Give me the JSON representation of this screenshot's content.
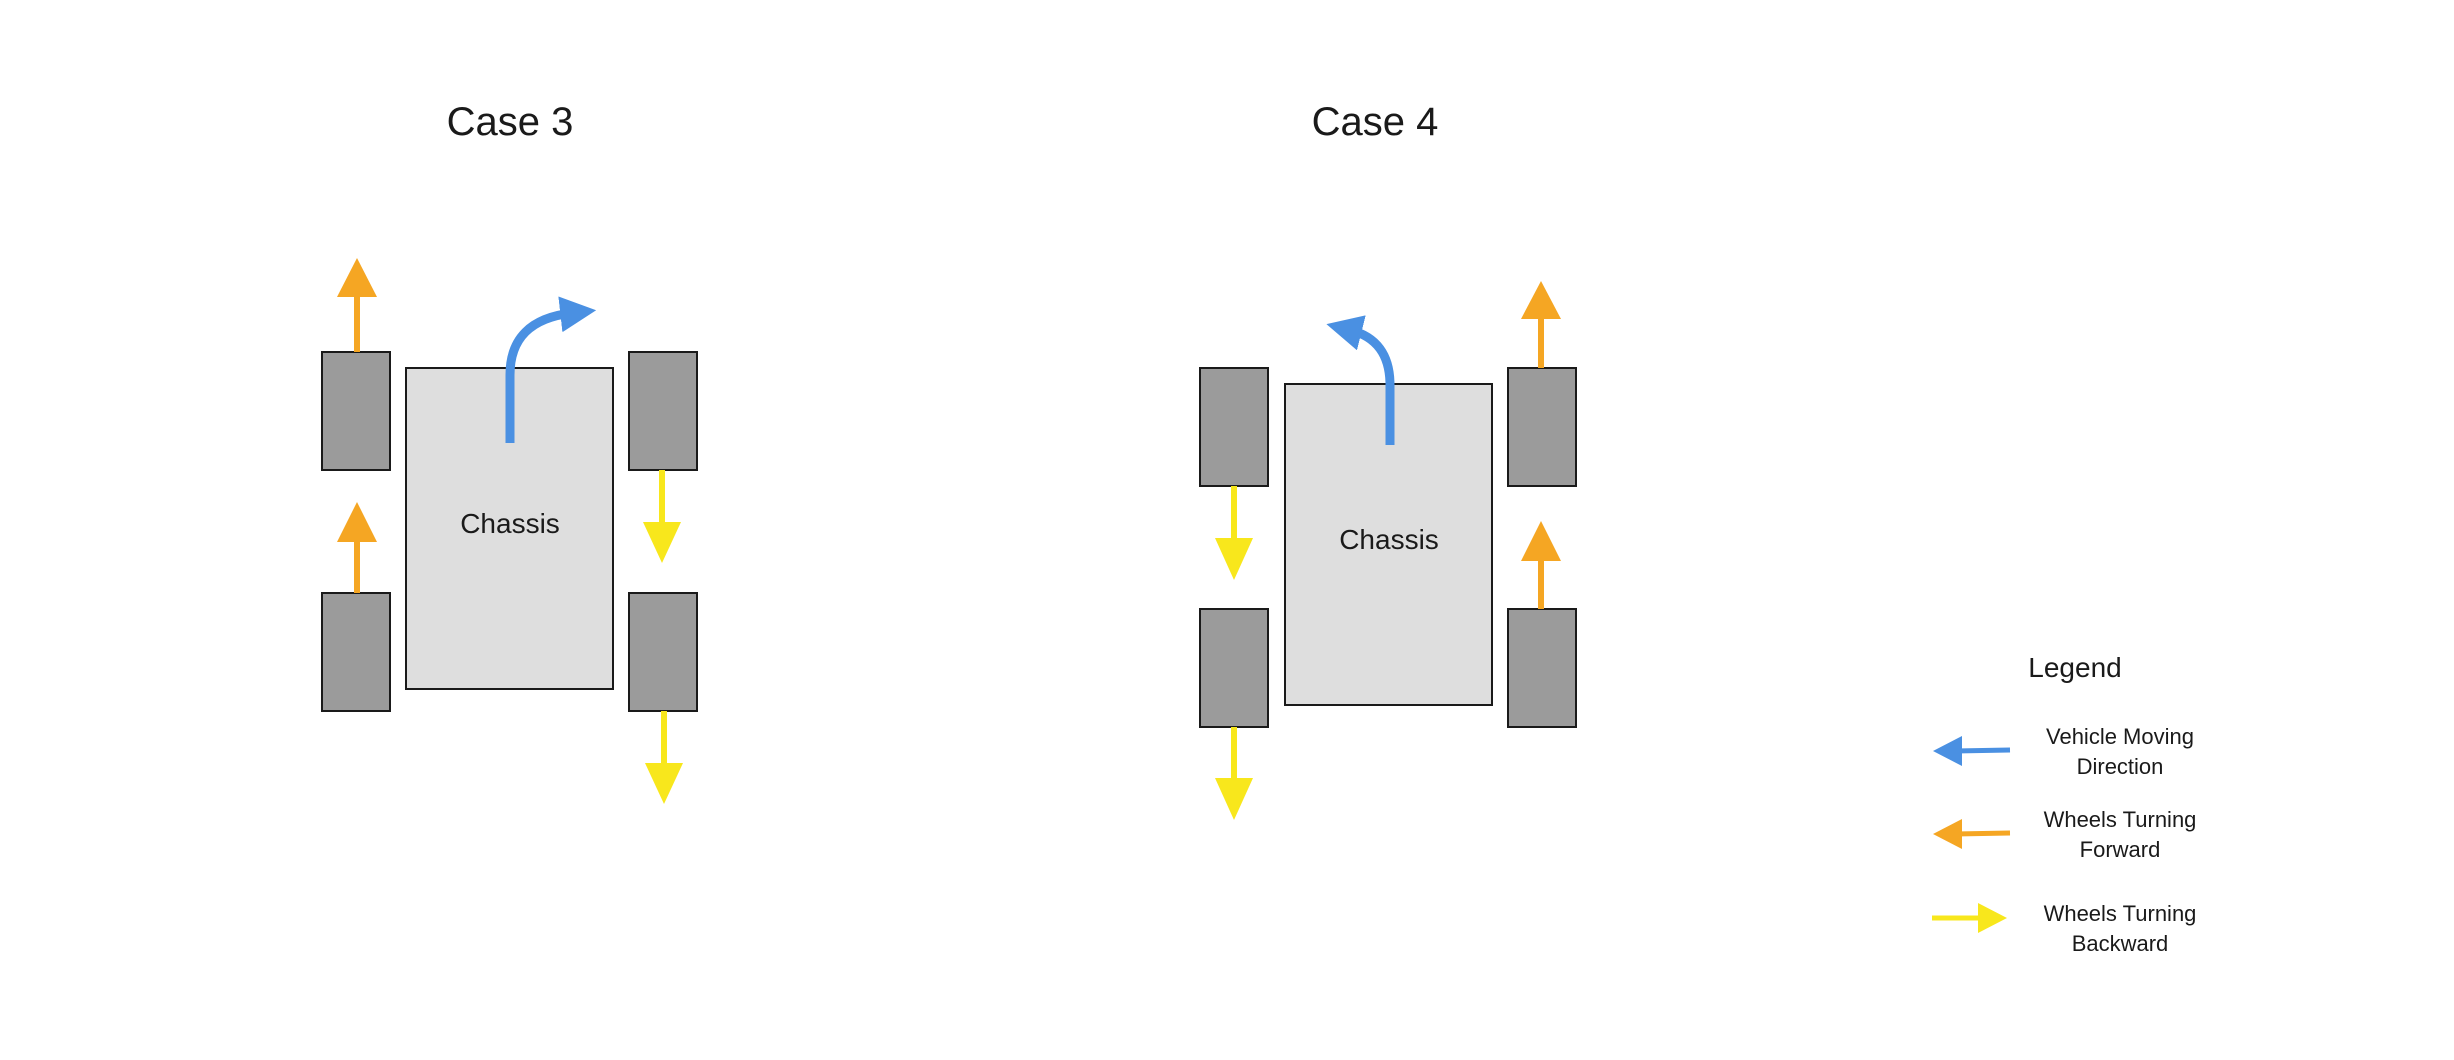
{
  "colors": {
    "vehicle": "#4a90e2",
    "forward": "#f5a623",
    "backward": "#f8e71c",
    "wheel": "#9b9b9b",
    "chassis": "#dedede",
    "outline": "#1a1a1a"
  },
  "case3": {
    "title": "Case 3",
    "chassis_label": "Chassis",
    "vehicle_turn": "right",
    "wheels": {
      "left_front": "forward",
      "left_rear": "forward",
      "right_front": "backward",
      "right_rear": "backward"
    }
  },
  "case4": {
    "title": "Case 4",
    "chassis_label": "Chassis",
    "vehicle_turn": "left",
    "wheels": {
      "left_front": "backward",
      "left_rear": "backward",
      "right_front": "forward",
      "right_rear": "forward"
    }
  },
  "legend": {
    "title": "Legend",
    "items": [
      {
        "line1": "Vehicle Moving",
        "line2": "Direction",
        "icon": "blue-arrow-left-icon"
      },
      {
        "line1": "Wheels Turning",
        "line2": "Forward",
        "icon": "orange-arrow-left-icon"
      },
      {
        "line1": "Wheels Turning",
        "line2": "Backward",
        "icon": "yellow-arrow-right-icon"
      }
    ]
  }
}
